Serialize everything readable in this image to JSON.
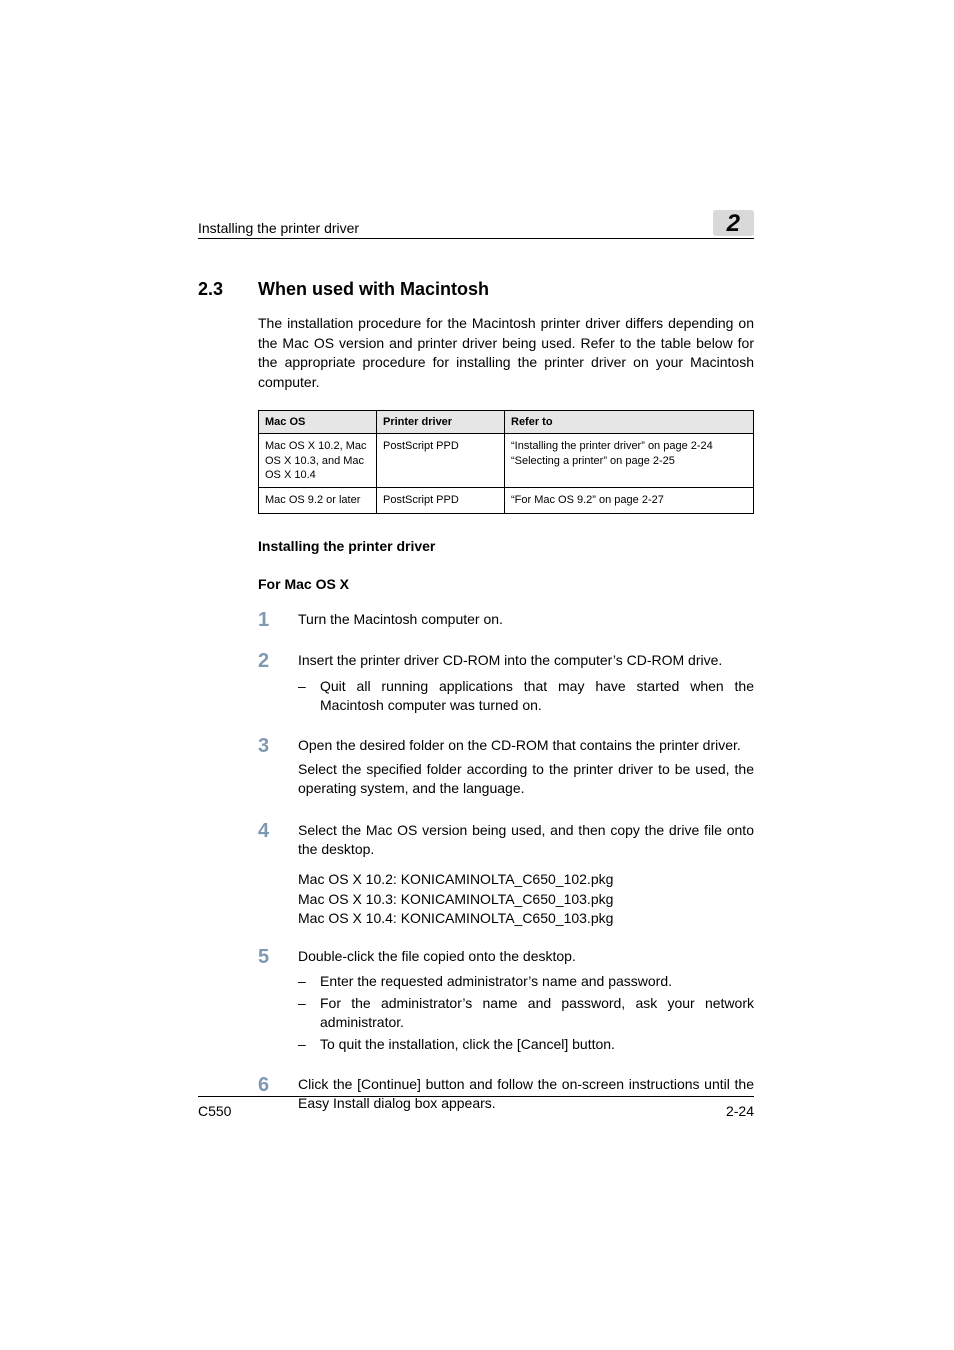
{
  "running_head": {
    "title": "Installing the printer driver",
    "chapter_number": "2"
  },
  "section": {
    "number": "2.3",
    "title": "When used with Macintosh",
    "intro": "The installation procedure for the Macintosh printer driver differs depending on the Mac OS version and printer driver being used. Refer to the table below for the appropriate procedure for installing the printer driver on your Macintosh computer."
  },
  "table": {
    "headers": [
      "Mac OS",
      "Printer driver",
      "Refer to"
    ],
    "rows": [
      {
        "os": "Mac OS X 10.2, Mac OS X 10.3, and Mac OS X 10.4",
        "driver": "PostScript PPD",
        "refer": "“Installing the printer driver” on page 2-24\n“Selecting a printer” on page 2-25"
      },
      {
        "os": "Mac OS 9.2 or later",
        "driver": "PostScript PPD",
        "refer": "“For Mac OS 9.2” on page 2-27"
      }
    ]
  },
  "subheading1": "Installing the printer driver",
  "subheading2": "For Mac OS X",
  "steps": [
    {
      "num": "1",
      "text": "Turn the Macintosh computer on."
    },
    {
      "num": "2",
      "text": "Insert the printer driver CD-ROM into the computer’s CD-ROM drive.",
      "bullets": [
        "Quit all running applications that may have started when the Macintosh computer was turned on."
      ]
    },
    {
      "num": "3",
      "text": "Open the desired folder on the CD-ROM that contains the printer driver.",
      "text2": "Select the specified folder according to the printer driver to be used, the operating system, and the language."
    },
    {
      "num": "4",
      "text": "Select the Mac OS version being used, and then copy the drive file onto the desktop.",
      "pkg": [
        "Mac OS X 10.2: KONICAMINOLTA_C650_102.pkg",
        "Mac OS X 10.3: KONICAMINOLTA_C650_103.pkg",
        "Mac OS X 10.4: KONICAMINOLTA_C650_103.pkg"
      ]
    },
    {
      "num": "5",
      "text": "Double-click the file copied onto the desktop.",
      "bullets": [
        "Enter the requested administrator’s name and password.",
        "For the administrator’s name and password, ask your network administrator.",
        "To quit the installation, click the [Cancel] button."
      ]
    },
    {
      "num": "6",
      "text": "Click the [Continue] button and follow the on-screen instructions until the Easy Install dialog box appears."
    }
  ],
  "footer": {
    "left": "C550",
    "right": "2-24"
  },
  "colors": {
    "step_number": "#7f99b3",
    "tab_bg": "#d9d9d9",
    "table_header_bg": "#e6e6e6"
  }
}
